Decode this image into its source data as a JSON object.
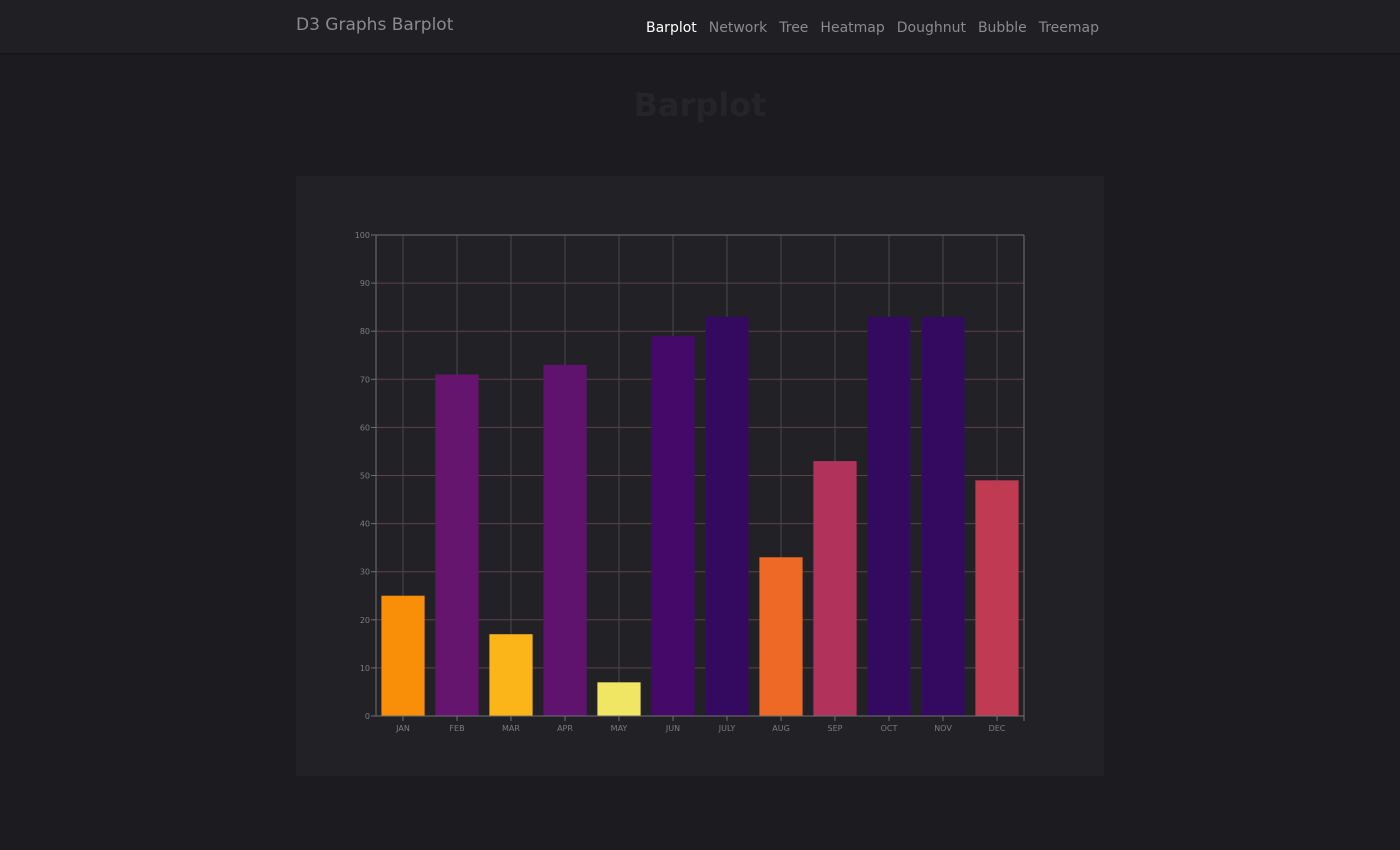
{
  "brand": "D3 Graphs Barplot",
  "nav": [
    {
      "label": "Barplot",
      "active": true
    },
    {
      "label": "Network",
      "active": false
    },
    {
      "label": "Tree",
      "active": false
    },
    {
      "label": "Heatmap",
      "active": false
    },
    {
      "label": "Doughnut",
      "active": false
    },
    {
      "label": "Bubble",
      "active": false
    },
    {
      "label": "Treemap",
      "active": false
    }
  ],
  "page_title": "Barplot",
  "chart_data": {
    "type": "bar",
    "title": "",
    "xlabel": "",
    "ylabel": "",
    "categories": [
      "JAN",
      "FEB",
      "MAR",
      "APR",
      "MAY",
      "JUN",
      "JULY",
      "AUG",
      "SEP",
      "OCT",
      "NOV",
      "DEC"
    ],
    "values": [
      25,
      71,
      17,
      73,
      7,
      79,
      83,
      33,
      53,
      83,
      83,
      49
    ],
    "colors": [
      "#f98e09",
      "#65156e",
      "#fcb519",
      "#5f136e",
      "#f1e664",
      "#450a69",
      "#330a5f",
      "#ed6925",
      "#b1325a",
      "#330a5f",
      "#330a5f",
      "#c03a51"
    ],
    "ylim": [
      0,
      100
    ],
    "yticks": [
      0,
      10,
      20,
      30,
      40,
      50,
      60,
      70,
      80,
      90,
      100
    ],
    "grid": true,
    "colors_meta": {
      "horizontal_grid": "#5a4248",
      "vertical_grid": "#48484c",
      "axis": "#707074"
    }
  }
}
